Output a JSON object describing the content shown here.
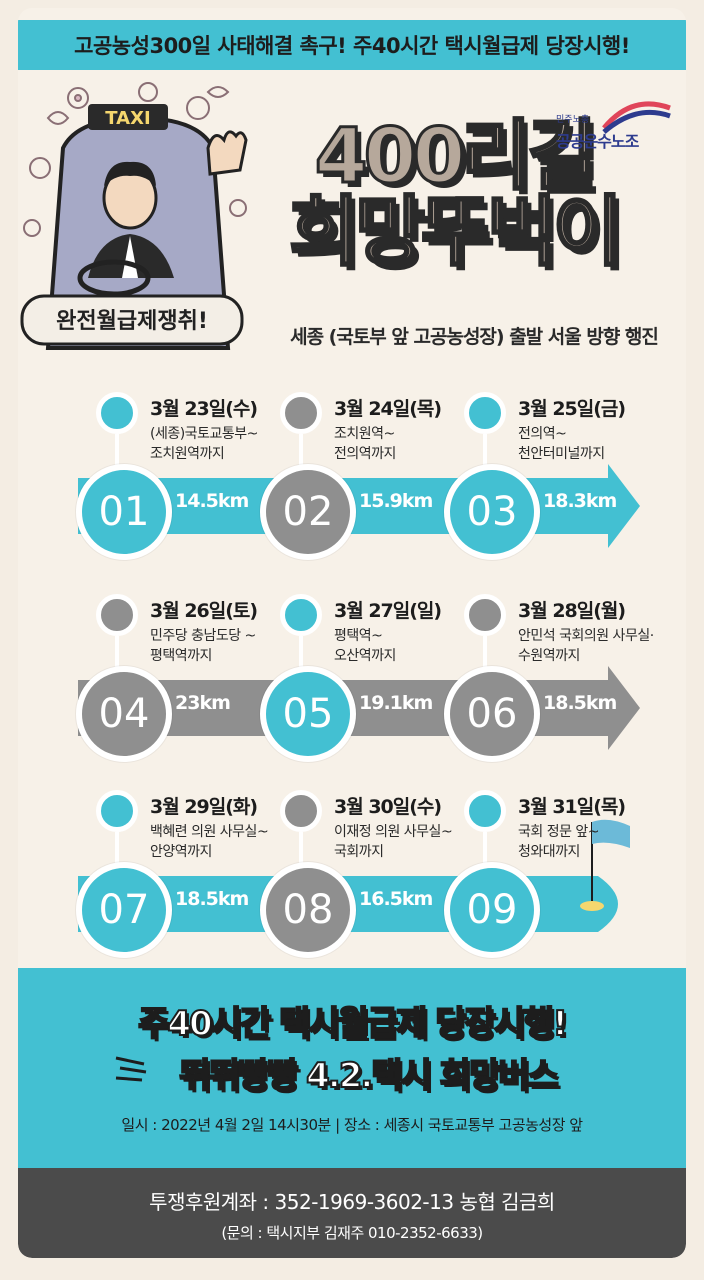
{
  "banner": {
    "text": "고공농성300일 사태해결 촉구! 주40시간 택시월급제 당장시행!"
  },
  "hero": {
    "taxi_sign": "TAXI",
    "sign_board": "완전월급제쟁취!",
    "title_line1": "400리길",
    "title_line2": "희망뚜벅이",
    "subtitle": "세종 (국토부 앞 고공농성장) 출발 서울 방향 행진",
    "logo_small": "민주노총",
    "logo_name": "공공운수노조"
  },
  "colors": {
    "teal": "#43c0d2",
    "gray": "#8f8f8f",
    "dark": "#4b4b4b",
    "beige": "#f7f1e8"
  },
  "rows": [
    {
      "arrow_color": "#43c0d2",
      "stops": [
        {
          "num": "01",
          "day": "3월 23일(수)",
          "line1": "(세종)국토교통부~",
          "line2": "조치원역까지",
          "dist": "14.5km",
          "color": "#43c0d2"
        },
        {
          "num": "02",
          "day": "3월 24일(목)",
          "line1": "조치원역~",
          "line2": "전의역까지",
          "dist": "15.9km",
          "color": "#8f8f8f"
        },
        {
          "num": "03",
          "day": "3월 25일(금)",
          "line1": "전의역~",
          "line2": "천안터미널까지",
          "dist": "18.3km",
          "color": "#43c0d2"
        }
      ]
    },
    {
      "arrow_color": "#8f8f8f",
      "stops": [
        {
          "num": "04",
          "day": "3월 26일(토)",
          "line1": "민주당 충남도당 ~",
          "line2": "평택역까지",
          "dist": "23km",
          "color": "#8f8f8f"
        },
        {
          "num": "05",
          "day": "3월 27일(일)",
          "line1": "평택역~",
          "line2": "오산역까지",
          "dist": "19.1km",
          "color": "#43c0d2"
        },
        {
          "num": "06",
          "day": "3월 28일(월)",
          "line1": "안민석 국회의원 사무실·",
          "line2": "수원역까지",
          "dist": "18.5km",
          "color": "#8f8f8f"
        }
      ]
    },
    {
      "arrow_color": "#43c0d2",
      "stops": [
        {
          "num": "07",
          "day": "3월 29일(화)",
          "line1": "백혜련 의원 사무실~",
          "line2": "안양역까지",
          "dist": "18.5km",
          "color": "#43c0d2"
        },
        {
          "num": "08",
          "day": "3월 30일(수)",
          "line1": "이재정 의원 사무실~",
          "line2": "국회까지",
          "dist": "16.5km",
          "color": "#8f8f8f"
        },
        {
          "num": "09",
          "day": "3월 31일(목)",
          "line1": "국회 정문 앞~",
          "line2": "청와대까지",
          "dist": "",
          "color": "#43c0d2"
        }
      ]
    }
  ],
  "promo": {
    "line1": "주40시간 택시월급제 당장시행!",
    "line2": "뛰뛰빵빵 4.2.택시 희망버스",
    "info": "일시 : 2022년 4월 2일 14시30분  |  장소 : 세종시 국토교통부 고공농성장 앞"
  },
  "footer": {
    "account": "투쟁후원계좌 : 352-1969-3602-13 농협 김금희",
    "contact": "(문의 : 택시지부 김재주 010-2352-6633)"
  }
}
